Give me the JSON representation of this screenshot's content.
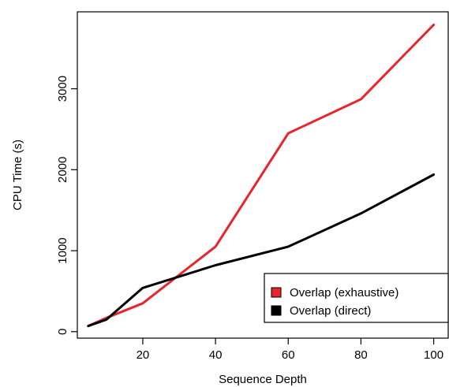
{
  "chart_data": {
    "type": "line",
    "title": "",
    "xlabel": "Sequence Depth",
    "ylabel": "CPU Time (s)",
    "xlim": [
      2,
      104
    ],
    "ylim": [
      -80,
      3950
    ],
    "x_ticks": [
      20,
      40,
      60,
      80,
      100
    ],
    "y_ticks": [
      0,
      1000,
      2000,
      3000
    ],
    "grid": false,
    "legend_position": "bottom-right",
    "series": [
      {
        "name": "Overlap (exhaustive)",
        "color": "#e8252d",
        "x": [
          5,
          10,
          20,
          40,
          60,
          80,
          100
        ],
        "y": [
          70,
          170,
          350,
          1050,
          2450,
          2870,
          3790
        ]
      },
      {
        "name": "Overlap (direct)",
        "color": "#000000",
        "x": [
          5,
          10,
          20,
          40,
          60,
          80,
          100
        ],
        "y": [
          70,
          150,
          540,
          820,
          1050,
          1460,
          1940
        ]
      }
    ]
  }
}
